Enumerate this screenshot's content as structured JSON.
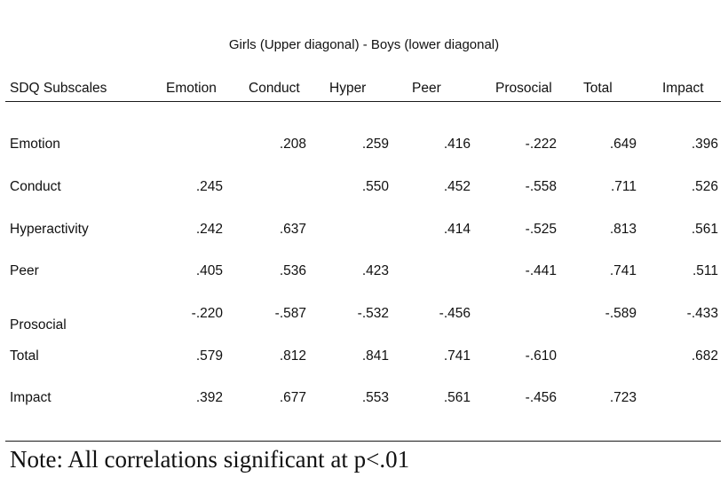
{
  "caption": "Girls (Upper diagonal) - Boys (lower diagonal)",
  "headers": [
    "SDQ Subscales",
    "Emotion",
    "Conduct",
    "Hyper",
    "Peer",
    "Prosocial",
    "Total",
    "Impact"
  ],
  "rows": [
    {
      "label": "Emotion",
      "cells": [
        "",
        ".208",
        ".259",
        ".416",
        "-.222",
        ".649",
        ".396"
      ]
    },
    {
      "label": "Conduct",
      "cells": [
        ".245",
        "",
        ".550",
        ".452",
        "-.558",
        ".711",
        ".526"
      ]
    },
    {
      "label": "Hyperactivity",
      "cells": [
        ".242",
        ".637",
        "",
        ".414",
        "-.525",
        ".813",
        ".561"
      ]
    },
    {
      "label": "Peer",
      "cells": [
        ".405",
        ".536",
        ".423",
        "",
        "-.441",
        ".741",
        ".511"
      ]
    },
    {
      "label": "Prosocial",
      "cells": [
        "-.220",
        "-.587",
        "-.532",
        "-.456",
        "",
        "-.589",
        "-.433"
      ]
    },
    {
      "label": "Total",
      "cells": [
        ".579",
        ".812",
        ".841",
        ".741",
        "-.610",
        "",
        ".682"
      ]
    },
    {
      "label": "Impact",
      "cells": [
        ".392",
        ".677",
        ".553",
        ".561",
        "-.456",
        ".723",
        ""
      ]
    }
  ],
  "note": "Note: All correlations significant at p<.01"
}
